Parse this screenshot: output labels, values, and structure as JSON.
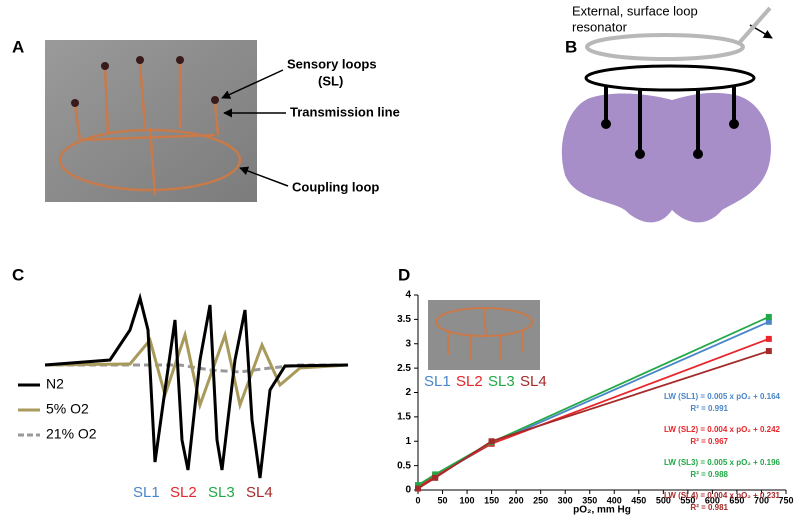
{
  "panels": {
    "a": {
      "label": "A",
      "annotations": [
        "Sensory loops",
        "(SL)",
        "Transmission line",
        "Coupling loop"
      ]
    },
    "b": {
      "label": "B",
      "annotations": [
        "External, surface loop",
        "resonator"
      ]
    },
    "c": {
      "label": "C",
      "legend": [
        "N2",
        "5% O2",
        "21% O2"
      ],
      "loop_labels": [
        "SL1",
        "SL2",
        "SL3",
        "SL4"
      ]
    }
  },
  "chart_data": {
    "type": "line",
    "label": "D",
    "x_label": "pO₂, mm Hg",
    "x": [
      0,
      35,
      150,
      715
    ],
    "series": [
      {
        "name": "SL1",
        "color": "#4a86c8",
        "values": [
          0.08,
          0.28,
          0.95,
          3.45
        ]
      },
      {
        "name": "SL2",
        "color": "#e8262b",
        "values": [
          0.05,
          0.3,
          0.95,
          3.1
        ]
      },
      {
        "name": "SL3",
        "color": "#22a846",
        "values": [
          0.1,
          0.32,
          0.98,
          3.55
        ]
      },
      {
        "name": "SL4",
        "color": "#a52a2a",
        "values": [
          0.03,
          0.25,
          1.0,
          2.85
        ]
      }
    ],
    "xlim": [
      0,
      750
    ],
    "xticks": [
      0,
      50,
      100,
      150,
      200,
      250,
      300,
      350,
      400,
      450,
      500,
      550,
      600,
      650,
      700,
      750
    ],
    "ylim": [
      0,
      4
    ],
    "yticks": [
      0,
      0.5,
      1,
      1.5,
      2,
      2.5,
      3,
      3.5,
      4
    ],
    "equations": [
      [
        "LW (SL1) = 0.005 x pO₂ + 0.164",
        "R² = 0.991"
      ],
      [
        "LW (SL2) = 0.004 x pO₂ + 0.242",
        "R² = 0.967"
      ],
      [
        "LW (SL3) = 0.005 x pO₂ + 0.196",
        "R² = 0.988"
      ],
      [
        "LW (SL4) = 0.004 x pO₂ + 0.231",
        "R² = 0.981"
      ]
    ]
  }
}
